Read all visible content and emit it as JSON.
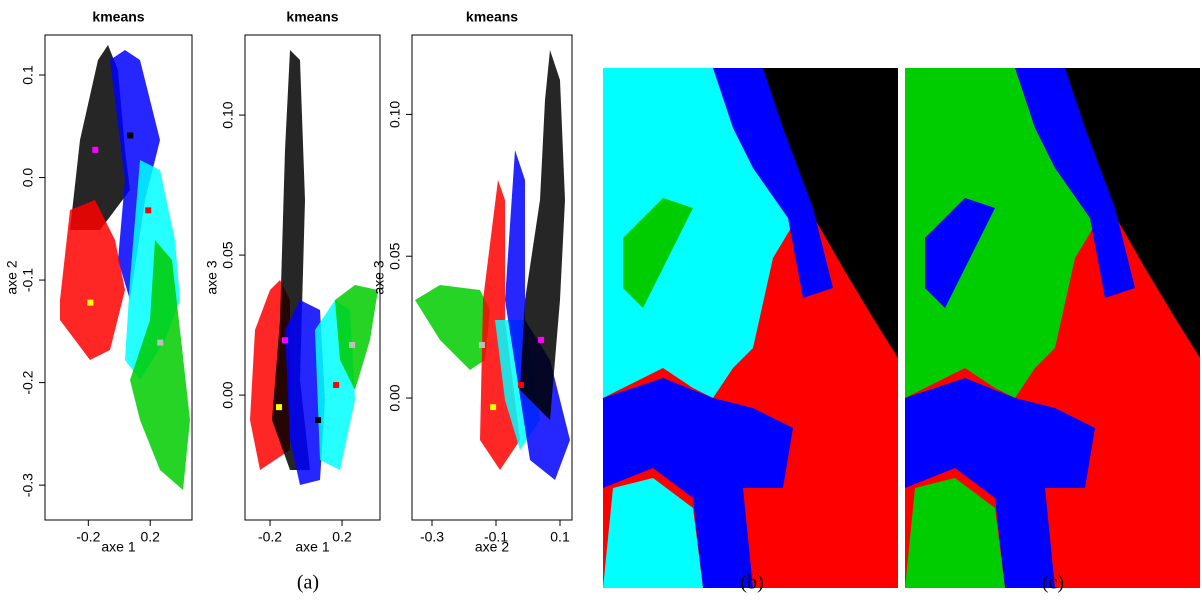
{
  "chart_data": [
    {
      "type": "scatter",
      "title": "kmeans",
      "x_label": "axe 1",
      "y_label": "axe 2",
      "xlim": [
        -0.48,
        0.47
      ],
      "ylim": [
        -0.334,
        0.139
      ],
      "xticks": [
        -0.2,
        0.2
      ],
      "yticks": [
        0.1,
        {
          "value": 0,
          "label": "0.0"
        },
        -0.1,
        -0.2,
        -0.3
      ],
      "series": [
        {
          "color": "#ff00ff",
          "x": [
            -0.155
          ],
          "values": [
            0.027
          ]
        },
        {
          "color": "#000000",
          "x": [
            0.071
          ],
          "values": [
            0.041
          ]
        },
        {
          "color": "#ff0000",
          "x": [
            0.187
          ],
          "values": [
            -0.032
          ]
        },
        {
          "color": "#ffff00",
          "x": [
            -0.187
          ],
          "values": [
            -0.122
          ]
        },
        {
          "color": "#bebebe",
          "x": [
            0.265
          ],
          "values": [
            -0.161
          ]
        }
      ]
    },
    {
      "type": "scatter",
      "title": "kmeans",
      "x_label": "axe 1",
      "y_label": "axe 3",
      "xlim": [
        -0.339,
        0.411
      ],
      "ylim": [
        -0.0446,
        0.1286
      ],
      "xticks": [
        -0.2,
        0.2
      ],
      "yticks": [
        {
          "value": 0.1,
          "label": "0.10"
        },
        0.05,
        {
          "value": 0,
          "label": "0.00"
        }
      ],
      "series": [
        {
          "color": "#ffff00",
          "x": [
            -0.15
          ],
          "values": [
            -0.0043
          ]
        },
        {
          "color": "#ff0000",
          "x": [
            0.167
          ],
          "values": [
            0.0036
          ]
        },
        {
          "color": "#000000",
          "x": [
            0.067
          ],
          "values": [
            -0.0089
          ]
        },
        {
          "color": "#bebebe",
          "x": [
            0.256
          ],
          "values": [
            0.0179
          ]
        },
        {
          "color": "#ff00ff",
          "x": [
            -0.117
          ],
          "values": [
            0.0196
          ]
        }
      ]
    },
    {
      "type": "scatter",
      "title": "kmeans",
      "x_label": "axe 2",
      "y_label": "axe 3",
      "xlim": [
        -0.3625,
        0.1375
      ],
      "ylim": [
        -0.043,
        0.128
      ],
      "xticks": [
        -0.3,
        -0.1,
        0.1
      ],
      "yticks": [
        {
          "value": 0.1,
          "label": "0.10"
        },
        0.05,
        {
          "value": 0,
          "label": "0.00"
        }
      ],
      "series": [
        {
          "color": "#bebebe",
          "x": [
            -0.144
          ],
          "values": [
            0.0187
          ]
        },
        {
          "color": "#ffff00",
          "x": [
            -0.109
          ],
          "values": [
            -0.0032
          ]
        },
        {
          "color": "#ff0000",
          "x": [
            -0.022
          ],
          "values": [
            0.0046
          ]
        },
        {
          "color": "#ff00ff",
          "x": [
            0.041
          ],
          "values": [
            0.0205
          ]
        }
      ]
    }
  ],
  "panel_labels": [
    "(a)",
    "(b)",
    "(c)"
  ]
}
